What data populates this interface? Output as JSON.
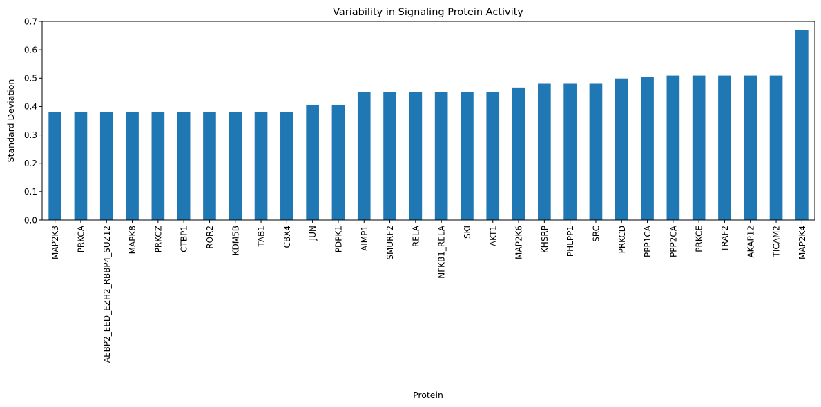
{
  "chart_data": {
    "type": "bar",
    "title": "Variability in Signaling Protein Activity",
    "xlabel": "Protein",
    "ylabel": "Standard Deviation",
    "ylim": [
      0,
      0.7
    ],
    "yticks": [
      "0.0",
      "0.1",
      "0.2",
      "0.3",
      "0.4",
      "0.5",
      "0.6",
      "0.7"
    ],
    "grid": false,
    "bar_color": "#1f77b4",
    "categories": [
      "MAP2K3",
      "PRKCA",
      "AEBP2_EED_EZH2_RBBP4_SUZ12",
      "MAPK8",
      "PRKCZ",
      "CTBP1",
      "ROR2",
      "KDM5B",
      "TAB1",
      "CBX4",
      "JUN",
      "PDPK1",
      "AIMP1",
      "SMURF2",
      "RELA",
      "NFKB1_RELA",
      "SKI",
      "AKT1",
      "MAP2K6",
      "KHSRP",
      "PHLPP1",
      "SRC",
      "PRKCD",
      "PPP1CA",
      "PPP2CA",
      "PRKCE",
      "TRAF2",
      "AKAP12",
      "TICAM2",
      "MAP2K4"
    ],
    "values": [
      0.38,
      0.38,
      0.38,
      0.38,
      0.38,
      0.38,
      0.38,
      0.38,
      0.38,
      0.38,
      0.406,
      0.406,
      0.451,
      0.451,
      0.451,
      0.451,
      0.451,
      0.451,
      0.467,
      0.48,
      0.48,
      0.48,
      0.499,
      0.504,
      0.509,
      0.509,
      0.509,
      0.509,
      0.509,
      0.67
    ]
  }
}
